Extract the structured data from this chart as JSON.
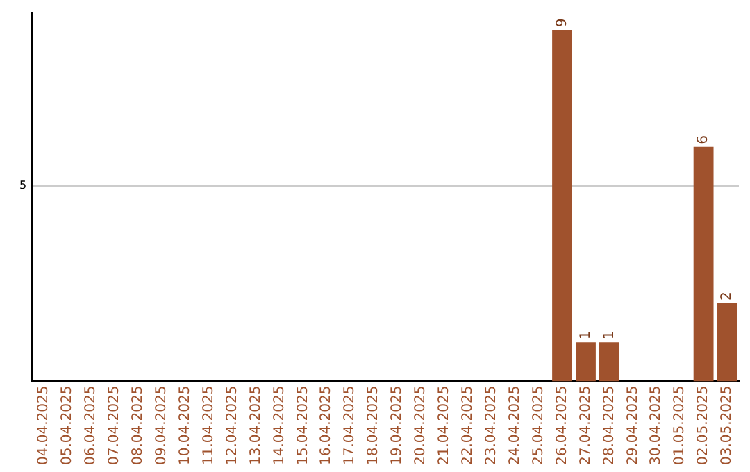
{
  "chart_data": {
    "type": "bar",
    "categories": [
      "04.04.2025",
      "05.04.2025",
      "06.04.2025",
      "07.04.2025",
      "08.04.2025",
      "09.04.2025",
      "10.04.2025",
      "11.04.2025",
      "12.04.2025",
      "13.04.2025",
      "14.04.2025",
      "15.04.2025",
      "16.04.2025",
      "17.04.2025",
      "18.04.2025",
      "19.04.2025",
      "20.04.2025",
      "21.04.2025",
      "22.04.2025",
      "23.04.2025",
      "24.04.2025",
      "25.04.2025",
      "26.04.2025",
      "27.04.2025",
      "28.04.2025",
      "29.04.2025",
      "30.04.2025",
      "01.05.2025",
      "02.05.2025",
      "03.05.2025"
    ],
    "values": [
      null,
      null,
      null,
      null,
      null,
      null,
      null,
      null,
      null,
      null,
      null,
      null,
      null,
      null,
      null,
      null,
      null,
      null,
      null,
      null,
      null,
      null,
      9,
      1,
      1,
      null,
      null,
      null,
      6,
      2
    ],
    "data_labels": true,
    "color": "#a0522d",
    "ylim": [
      0,
      9.45
    ],
    "yticks": [
      5
    ],
    "grid": "y",
    "legend": false
  }
}
